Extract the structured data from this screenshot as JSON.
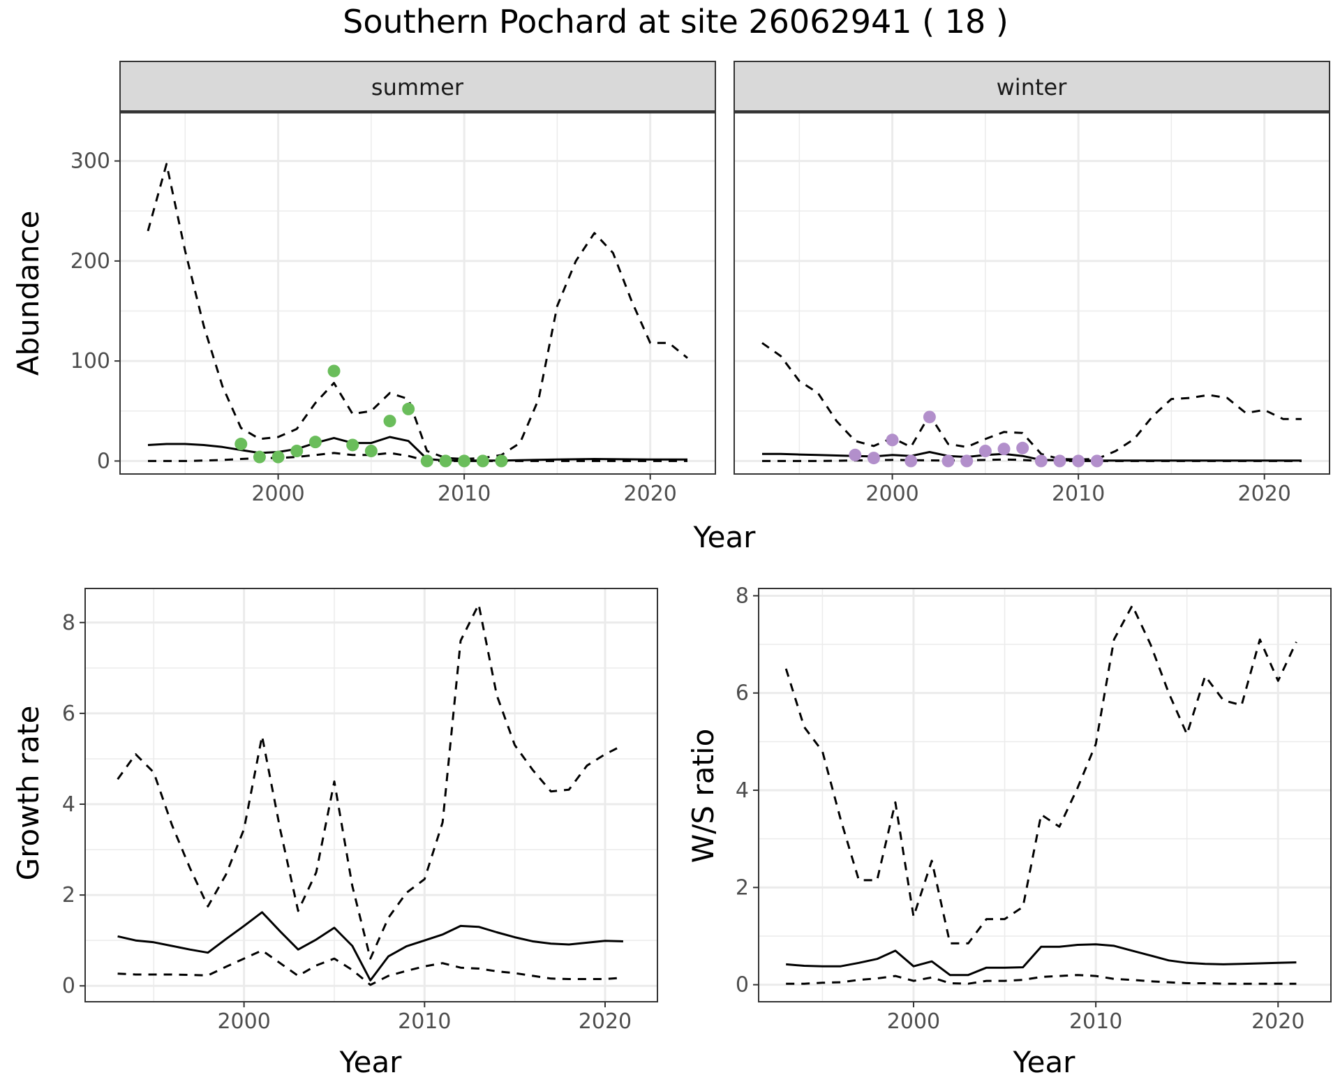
{
  "title": "Southern Pochard at site 26062941 ( 18 )",
  "colors": {
    "summer_points": "#6ABD5B",
    "winter_points": "#B28FCB",
    "line": "#000000",
    "grid": "#ebebeb",
    "strip_bg": "#d9d9d9",
    "panel_border": "#333333"
  },
  "chart_data": [
    {
      "id": "abundance",
      "type": "line",
      "ylabel": "Abundance",
      "xlabel": "Year",
      "xlim": [
        1991.5,
        2023.5
      ],
      "ylim": [
        -13,
        350
      ],
      "x_ticks": [
        2000,
        2010,
        2020
      ],
      "y_ticks": [
        0,
        100,
        200,
        300
      ],
      "y_ticks_minor": [
        50,
        150,
        250
      ],
      "facets": [
        {
          "name": "summer",
          "points": {
            "x": [
              1998,
              1999,
              2000,
              2001,
              2002,
              2003,
              2004,
              2005,
              2006,
              2007,
              2008,
              2009,
              2010,
              2011,
              2012
            ],
            "y": [
              17,
              4,
              4,
              10,
              19,
              90,
              16,
              10,
              40,
              52,
              0,
              0,
              0,
              0,
              0
            ]
          },
          "series": [
            {
              "style": "solid",
              "x": [
                1993,
                1994,
                1995,
                1996,
                1997,
                1998,
                1999,
                2000,
                2001,
                2002,
                2003,
                2004,
                2005,
                2006,
                2007,
                2008,
                2009,
                2010,
                2012,
                2015,
                2017,
                2020,
                2022
              ],
              "y": [
                16,
                17,
                17,
                16,
                14,
                11,
                8,
                9,
                12,
                18,
                23,
                18,
                18,
                24,
                20,
                2,
                0.5,
                0.4,
                0.5,
                1.5,
                2,
                1.5,
                1.5
              ]
            },
            {
              "style": "dashed",
              "x": [
                1993,
                1994,
                1995,
                1996,
                1997,
                1998,
                1999,
                2000,
                2001,
                2002,
                2003,
                2004,
                2005,
                2006,
                2007,
                2008,
                2009,
                2010,
                2011,
                2012,
                2013,
                2014,
                2015,
                2016,
                2017,
                2018,
                2019,
                2020,
                2021,
                2022
              ],
              "y": [
                230,
                297,
                210,
                135,
                75,
                33,
                22,
                24,
                32,
                58,
                78,
                47,
                50,
                68,
                62,
                10,
                3,
                2,
                3,
                6,
                18,
                62,
                155,
                200,
                228,
                208,
                160,
                118,
                118,
                103
              ]
            },
            {
              "style": "dashed",
              "x": [
                1993,
                1994,
                1995,
                1996,
                1997,
                1998,
                1999,
                2000,
                2001,
                2002,
                2003,
                2004,
                2005,
                2006,
                2007,
                2008,
                2010,
                2014,
                2018,
                2022
              ],
              "y": [
                0,
                0,
                0,
                0.5,
                1,
                2,
                3,
                3,
                4,
                6,
                8,
                6,
                6,
                8,
                5,
                0.2,
                0,
                0,
                0,
                0
              ]
            }
          ]
        },
        {
          "name": "winter",
          "points": {
            "x": [
              1998,
              1999,
              2000,
              2001,
              2002,
              2003,
              2004,
              2005,
              2006,
              2007,
              2008,
              2009,
              2010,
              2011
            ],
            "y": [
              6,
              3,
              21,
              0,
              44,
              0,
              0,
              10,
              12,
              13,
              0,
              0,
              0,
              0
            ]
          },
          "series": [
            {
              "style": "solid",
              "x": [
                1993,
                1994,
                1995,
                1996,
                1997,
                1998,
                1999,
                2000,
                2001,
                2002,
                2003,
                2004,
                2005,
                2006,
                2007,
                2008,
                2010,
                2014,
                2018,
                2022
              ],
              "y": [
                7,
                7,
                6.5,
                6,
                5.5,
                5,
                4.5,
                6,
                5,
                9,
                5,
                4,
                6,
                7,
                5,
                1,
                0.5,
                0.5,
                0.5,
                0.5
              ]
            },
            {
              "style": "dashed",
              "x": [
                1993,
                1994,
                1995,
                1996,
                1997,
                1998,
                1999,
                2000,
                2001,
                2002,
                2003,
                2004,
                2005,
                2006,
                2007,
                2008,
                2009,
                2010,
                2011,
                2012,
                2013,
                2014,
                2015,
                2016,
                2017,
                2018,
                2019,
                2020,
                2021,
                2022
              ],
              "y": [
                118,
                105,
                80,
                68,
                40,
                20,
                15,
                23,
                14,
                46,
                17,
                14,
                22,
                29,
                28,
                7,
                2,
                1.5,
                2,
                10,
                22,
                45,
                62,
                63,
                66,
                63,
                48,
                51,
                42,
                42
              ]
            },
            {
              "style": "dashed",
              "x": [
                1993,
                1996,
                2000,
                2003,
                2005,
                2006,
                2007,
                2008,
                2010,
                2015,
                2022
              ],
              "y": [
                0,
                0,
                1,
                0.5,
                1,
                1.5,
                1,
                0,
                0,
                0,
                0
              ]
            }
          ]
        }
      ]
    },
    {
      "id": "growth",
      "type": "line",
      "ylabel": "Growth rate",
      "xlabel": "Year",
      "xlim": [
        1991.2,
        2022.9
      ],
      "ylim": [
        -0.35,
        8.75
      ],
      "x_ticks": [
        2000,
        2010,
        2020
      ],
      "y_ticks": [
        0,
        2,
        4,
        6,
        8
      ],
      "series": [
        {
          "style": "solid",
          "x": [
            1993,
            1994,
            1995,
            1996,
            1997,
            1998,
            1999,
            2000,
            2001,
            2002,
            2003,
            2004,
            2005,
            2006,
            2007,
            2008,
            2009,
            2010,
            2011,
            2012,
            2013,
            2014,
            2015,
            2016,
            2017,
            2018,
            2019,
            2020,
            2021
          ],
          "y": [
            1.09,
            1.0,
            0.96,
            0.88,
            0.8,
            0.73,
            1.03,
            1.32,
            1.62,
            1.2,
            0.8,
            1.02,
            1.28,
            0.88,
            0.12,
            0.65,
            0.87,
            1.0,
            1.13,
            1.32,
            1.3,
            1.18,
            1.07,
            0.98,
            0.93,
            0.91,
            0.95,
            0.99,
            0.98
          ]
        },
        {
          "style": "dashed",
          "x": [
            1993,
            1994,
            1995,
            1996,
            1997,
            1998,
            1999,
            2000,
            2001,
            2002,
            2003,
            2004,
            2005,
            2006,
            2007,
            2008,
            2009,
            2010,
            2011,
            2012,
            2013,
            2014,
            2015,
            2016,
            2017,
            2018,
            2019,
            2020,
            2021
          ],
          "y": [
            4.55,
            5.1,
            4.7,
            3.55,
            2.6,
            1.75,
            2.45,
            3.45,
            5.5,
            3.45,
            1.65,
            2.5,
            4.5,
            2.2,
            0.6,
            1.5,
            2.05,
            2.35,
            3.6,
            7.6,
            8.4,
            6.4,
            5.3,
            4.75,
            4.28,
            4.32,
            4.85,
            5.1,
            5.3
          ]
        },
        {
          "style": "dashed",
          "x": [
            1993,
            1994,
            1995,
            1996,
            1997,
            1998,
            1999,
            2000,
            2001,
            2002,
            2003,
            2004,
            2005,
            2006,
            2007,
            2008,
            2009,
            2010,
            2011,
            2012,
            2013,
            2014,
            2015,
            2016,
            2017,
            2018,
            2019,
            2020,
            2021
          ],
          "y": [
            0.27,
            0.25,
            0.25,
            0.25,
            0.24,
            0.23,
            0.42,
            0.6,
            0.78,
            0.5,
            0.22,
            0.45,
            0.6,
            0.35,
            0.02,
            0.22,
            0.33,
            0.43,
            0.5,
            0.4,
            0.38,
            0.32,
            0.28,
            0.22,
            0.16,
            0.15,
            0.15,
            0.15,
            0.18
          ]
        }
      ]
    },
    {
      "id": "ws_ratio",
      "type": "line",
      "ylabel": "W/S ratio",
      "xlabel": "Year",
      "xlim": [
        1991.5,
        2022.9
      ],
      "ylim": [
        -0.35,
        8.15
      ],
      "x_ticks": [
        2000,
        2010,
        2020
      ],
      "y_ticks": [
        0,
        2,
        4,
        6,
        8
      ],
      "series": [
        {
          "style": "solid",
          "x": [
            1993,
            1994,
            1995,
            1996,
            1997,
            1998,
            1999,
            2000,
            2001,
            2002,
            2003,
            2004,
            2005,
            2006,
            2007,
            2008,
            2009,
            2010,
            2011,
            2012,
            2013,
            2014,
            2015,
            2016,
            2017,
            2018,
            2019,
            2020,
            2021
          ],
          "y": [
            0.42,
            0.39,
            0.38,
            0.38,
            0.45,
            0.53,
            0.7,
            0.38,
            0.48,
            0.2,
            0.2,
            0.35,
            0.35,
            0.36,
            0.78,
            0.78,
            0.82,
            0.83,
            0.8,
            0.7,
            0.6,
            0.5,
            0.45,
            0.43,
            0.42,
            0.43,
            0.44,
            0.45,
            0.46
          ]
        },
        {
          "style": "dashed",
          "x": [
            1993,
            1994,
            1995,
            1996,
            1997,
            1998,
            1999,
            2000,
            2001,
            2002,
            2003,
            2004,
            2005,
            2006,
            2007,
            2008,
            2009,
            2010,
            2011,
            2012,
            2013,
            2014,
            2015,
            2016,
            2017,
            2018,
            2019,
            2020,
            2021
          ],
          "y": [
            6.5,
            5.3,
            4.8,
            3.4,
            2.15,
            2.15,
            3.75,
            1.4,
            2.55,
            0.85,
            0.85,
            1.35,
            1.35,
            1.6,
            3.5,
            3.25,
            4.05,
            4.95,
            7.1,
            7.8,
            7.0,
            6.0,
            5.15,
            6.35,
            5.85,
            5.75,
            7.1,
            6.25,
            7.05
          ]
        },
        {
          "style": "dashed",
          "x": [
            1993,
            1994,
            1995,
            1996,
            1997,
            1998,
            1999,
            2000,
            2001,
            2002,
            2003,
            2004,
            2005,
            2006,
            2007,
            2008,
            2009,
            2010,
            2011,
            2012,
            2013,
            2014,
            2015,
            2016,
            2017,
            2018,
            2019,
            2020,
            2021
          ],
          "y": [
            0.02,
            0.02,
            0.04,
            0.05,
            0.1,
            0.13,
            0.18,
            0.08,
            0.15,
            0.03,
            0.02,
            0.08,
            0.08,
            0.1,
            0.16,
            0.18,
            0.2,
            0.18,
            0.12,
            0.1,
            0.07,
            0.05,
            0.03,
            0.03,
            0.02,
            0.02,
            0.02,
            0.02,
            0.02
          ]
        }
      ]
    }
  ]
}
